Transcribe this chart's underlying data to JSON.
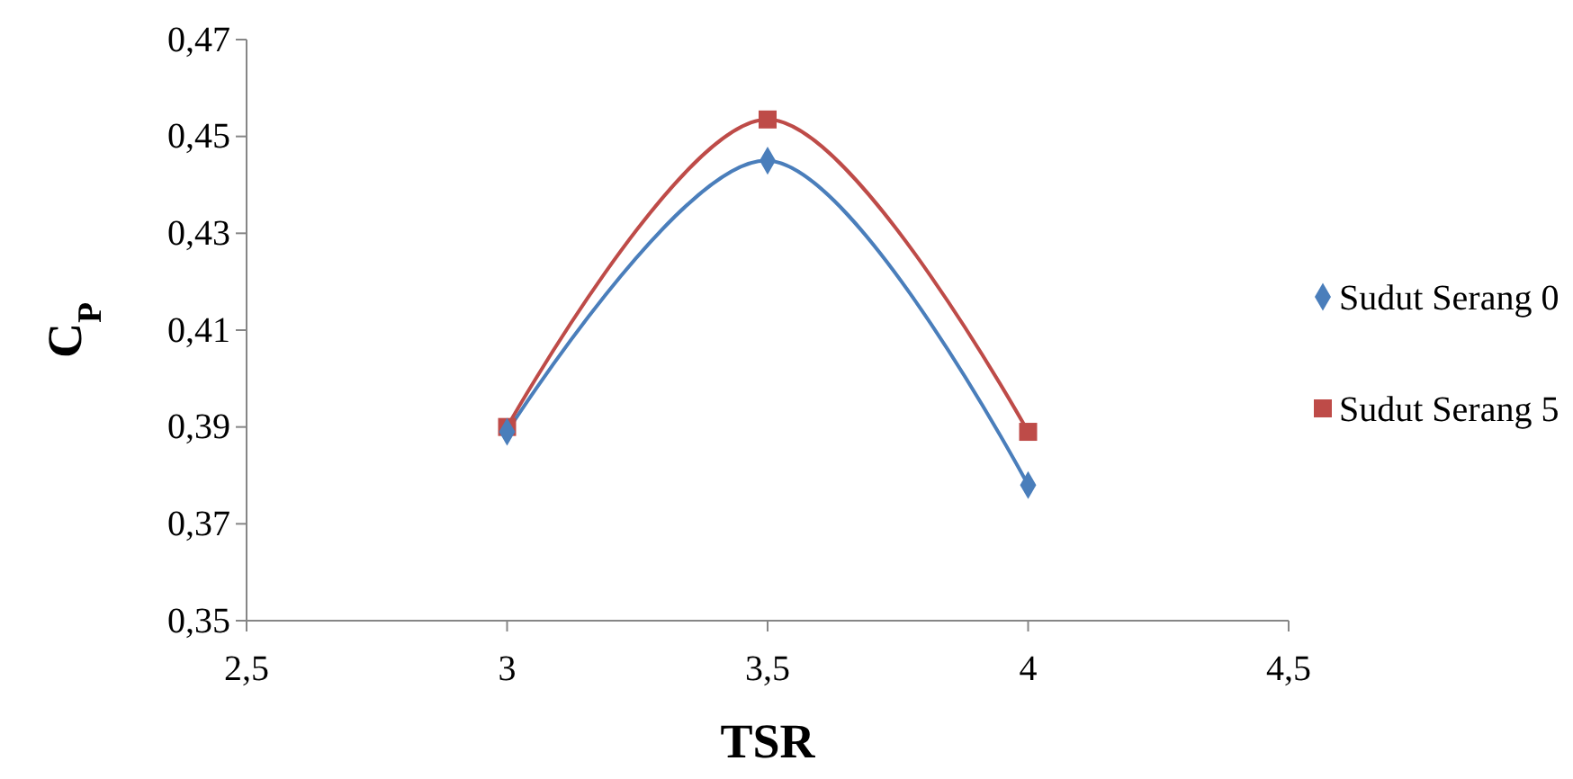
{
  "chart_data": {
    "type": "line",
    "xlabel": "TSR",
    "ylabel": "C$_{P}$",
    "x": [
      3,
      3.5,
      4
    ],
    "series": [
      {
        "name": "Sudut Serang 0",
        "color": "#4a7ebb",
        "marker": "diamond",
        "values": [
          0.389,
          0.445,
          0.378
        ]
      },
      {
        "name": "Sudut Serang 5",
        "color": "#be4b48",
        "marker": "square",
        "values": [
          0.39,
          0.4535,
          0.389
        ]
      }
    ],
    "xlim": [
      2.5,
      4.5
    ],
    "xticks": [
      {
        "value": 2.5,
        "label": "2,5"
      },
      {
        "value": 3,
        "label": "3"
      },
      {
        "value": 3.5,
        "label": "3,5"
      },
      {
        "value": 4,
        "label": "4"
      },
      {
        "value": 4.5,
        "label": "4,5"
      }
    ],
    "ylim": [
      0.35,
      0.47
    ],
    "yticks": [
      {
        "value": 0.35,
        "label": "0,35"
      },
      {
        "value": 0.37,
        "label": "0,37"
      },
      {
        "value": 0.39,
        "label": "0,39"
      },
      {
        "value": 0.41,
        "label": "0,41"
      },
      {
        "value": 0.43,
        "label": "0,43"
      },
      {
        "value": 0.45,
        "label": "0,45"
      },
      {
        "value": 0.47,
        "label": "0,47"
      }
    ],
    "grid": false,
    "legend": "right",
    "line_style": "solid"
  }
}
